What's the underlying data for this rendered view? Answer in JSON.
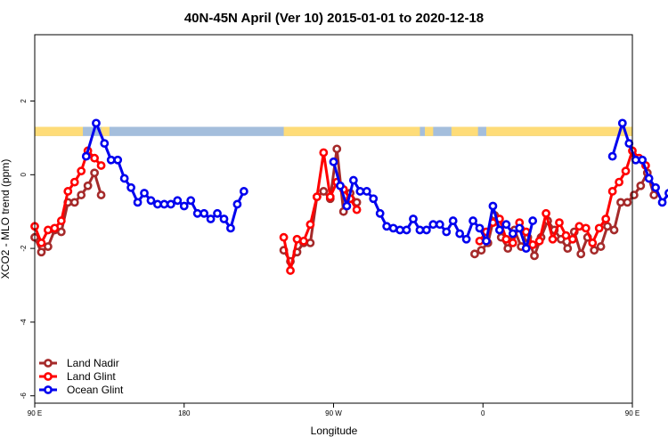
{
  "chart_data": {
    "type": "line",
    "title": "40N-45N April (Ver 10)   2015-01-01 to 2020-12-18",
    "xlabel": "Longitude",
    "ylabel": "XCO2 - MLO trend (ppm)",
    "xlim": [
      90,
      450
    ],
    "ylim": [
      -6.2,
      3.8
    ],
    "grid": false,
    "legend_position": "bottom-left",
    "x_ticks": [
      {
        "value": 90,
        "label": "90 E"
      },
      {
        "value": 180,
        "label": "180"
      },
      {
        "value": 270,
        "label": "90 W"
      },
      {
        "value": 360,
        "label": "0"
      },
      {
        "value": 450,
        "label": "90 E"
      },
      {
        "value": 540,
        "label": "180"
      }
    ],
    "y_ticks": [
      {
        "value": 2,
        "label": "2"
      },
      {
        "value": 0,
        "label": "0"
      },
      {
        "value": -2,
        "label": "-2"
      },
      {
        "value": -4,
        "label": "-4"
      },
      {
        "value": -6,
        "label": "-6"
      }
    ],
    "land_ocean_strip": {
      "y_range": [
        1.05,
        1.3
      ],
      "ocean_color": "#a4bedc",
      "land_color": "#fedc78",
      "land_segments": [
        [
          90,
          119
        ],
        [
          130,
          135
        ],
        [
          240,
          322
        ],
        [
          325,
          330
        ],
        [
          341,
          357
        ],
        [
          362,
          451
        ],
        [
          479,
          484
        ],
        [
          495,
          501
        ]
      ]
    },
    "series": [
      {
        "name": "Land Nadir",
        "color": "#a52a2a",
        "segments": [
          {
            "x": [
              90,
              94,
              98,
              102,
              106,
              110,
              114,
              118,
              122,
              126,
              130,
              134
            ],
            "y": [
              -1.7,
              -2.1,
              -1.95,
              -1.5,
              -1.55,
              -0.75,
              -0.75,
              -0.55,
              -0.3,
              0.05,
              -0.55,
              null
            ]
          },
          {
            "x": [
              240,
              244,
              248,
              252,
              256,
              260,
              264,
              268,
              272,
              276,
              280,
              284
            ],
            "y": [
              -2.05,
              -2.35,
              -2.1,
              -1.85,
              -1.85,
              -0.6,
              -0.45,
              -0.65,
              0.7,
              -1.0,
              -0.5,
              -0.75
            ]
          },
          {
            "x": [
              355,
              359,
              363,
              367,
              371,
              375,
              379,
              383,
              387,
              391,
              395,
              399,
              403,
              407,
              411,
              415,
              419,
              423,
              427,
              431,
              435,
              439,
              443,
              447,
              451,
              455,
              459,
              463,
              467,
              471,
              475
            ],
            "y": [
              -2.15,
              -2.05,
              -1.85,
              -1.1,
              -1.7,
              -2.0,
              -1.5,
              -1.95,
              -1.7,
              -2.2,
              -1.7,
              -1.25,
              -1.5,
              -1.75,
              -2.0,
              -1.55,
              -2.15,
              -1.7,
              -2.05,
              -1.95,
              -1.4,
              -1.5,
              -0.75,
              -0.75,
              -0.55,
              -0.3,
              0.05,
              -0.55,
              null,
              null,
              null
            ]
          }
        ]
      },
      {
        "name": "Land Glint",
        "color": "#ff0000",
        "segments": [
          {
            "x": [
              90,
              94,
              98,
              102,
              106,
              110,
              114,
              118,
              122,
              126,
              130
            ],
            "y": [
              -1.4,
              -1.85,
              -1.5,
              -1.45,
              -1.25,
              -0.45,
              -0.2,
              0.1,
              0.65,
              0.45,
              0.25
            ]
          },
          {
            "x": [
              240,
              244,
              248,
              252,
              256,
              260,
              264,
              268,
              272,
              276,
              280,
              284
            ],
            "y": [
              -1.7,
              -2.6,
              -1.75,
              -1.8,
              -1.35,
              -0.6,
              0.6,
              -0.6,
              -0.2,
              -0.4,
              -0.65,
              -0.95
            ]
          },
          {
            "x": [
              358,
              362,
              366,
              370,
              374,
              378,
              382,
              386,
              390,
              394,
              398,
              402,
              406,
              410,
              414,
              418,
              422,
              426,
              430,
              434,
              438,
              442,
              446,
              450,
              454,
              458
            ],
            "y": [
              -1.8,
              -1.55,
              -1.3,
              -1.2,
              -1.75,
              -1.85,
              -1.3,
              -1.55,
              -1.9,
              -1.8,
              -1.05,
              -1.75,
              -1.3,
              -1.65,
              -1.75,
              -1.4,
              -1.45,
              -1.85,
              -1.45,
              -1.2,
              -0.45,
              -0.2,
              0.1,
              0.65,
              0.45,
              0.25
            ]
          }
        ]
      },
      {
        "name": "Ocean Glint",
        "color": "#0000ee",
        "segments": [
          {
            "x": [
              121,
              127,
              132,
              136,
              140,
              144,
              148,
              152,
              156,
              160,
              164,
              168,
              172,
              176,
              180,
              184,
              188,
              192,
              196,
              200,
              204,
              208,
              212,
              216,
              220,
              224,
              228,
              232
            ],
            "y": [
              0.5,
              1.4,
              0.85,
              0.4,
              0.4,
              -0.1,
              -0.35,
              -0.75,
              -0.5,
              -0.7,
              -0.8,
              -0.8,
              -0.8,
              -0.7,
              -0.85,
              -0.7,
              -1.05,
              -1.05,
              -1.2,
              -1.05,
              -1.2,
              -1.45,
              -0.8,
              -0.45,
              null,
              null,
              null,
              null
            ]
          },
          {
            "x": [
              270,
              274,
              278,
              282,
              286,
              290,
              294,
              298,
              302,
              306,
              310,
              314,
              318,
              322,
              326,
              330,
              334,
              338,
              342,
              346,
              350,
              354,
              358,
              362,
              366,
              370,
              374,
              378,
              382,
              386,
              390,
              394,
              398,
              402,
              406,
              410,
              414,
              418
            ],
            "y": [
              0.35,
              -0.3,
              -0.85,
              -0.15,
              -0.45,
              -0.45,
              -0.65,
              -1.05,
              -1.4,
              -1.45,
              -1.5,
              -1.5,
              -1.2,
              -1.5,
              -1.5,
              -1.35,
              -1.35,
              -1.55,
              -1.25,
              -1.6,
              -1.75,
              -1.25,
              -1.45,
              -1.8,
              -0.85,
              -1.5,
              -1.35,
              -1.6,
              -1.45,
              -2.0,
              -1.25,
              null,
              null,
              null,
              null,
              null,
              null,
              null
            ]
          },
          {
            "x": [
              438,
              444,
              448,
              452,
              456,
              460,
              464,
              468,
              472,
              476,
              480,
              484,
              488
            ],
            "y": [
              0.5,
              1.4,
              0.85,
              0.4,
              0.4,
              -0.1,
              -0.35,
              -0.75,
              -0.5,
              -0.7,
              -0.8,
              -0.8,
              null
            ]
          }
        ]
      }
    ]
  }
}
